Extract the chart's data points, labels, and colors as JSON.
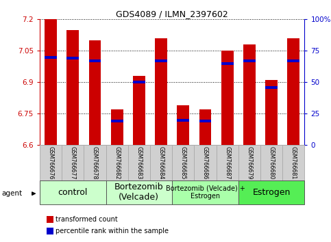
{
  "title": "GDS4089 / ILMN_2397602",
  "samples": [
    "GSM766676",
    "GSM766677",
    "GSM766678",
    "GSM766682",
    "GSM766683",
    "GSM766684",
    "GSM766685",
    "GSM766686",
    "GSM766687",
    "GSM766679",
    "GSM766680",
    "GSM766681"
  ],
  "transformed_counts": [
    7.2,
    7.15,
    7.1,
    6.77,
    6.93,
    7.11,
    6.79,
    6.77,
    7.05,
    7.08,
    6.91,
    7.11
  ],
  "percentile_ranks": [
    70,
    69,
    67,
    19,
    50,
    67,
    20,
    19,
    65,
    67,
    46,
    67
  ],
  "ylim": [
    6.6,
    7.2
  ],
  "yticks": [
    6.6,
    6.75,
    6.9,
    7.05,
    7.2
  ],
  "ytick_labels": [
    "6.6",
    "6.75",
    "6.9",
    "7.05",
    "7.2"
  ],
  "right_yticks": [
    0,
    25,
    50,
    75,
    100
  ],
  "right_ytick_labels": [
    "0",
    "25",
    "50",
    "75",
    "100%"
  ],
  "bar_color": "#cc0000",
  "percentile_color": "#0000cc",
  "bar_width": 0.55,
  "groups": [
    {
      "label": "control",
      "start": 0,
      "end": 3,
      "color": "#ccffcc",
      "fontsize": 9
    },
    {
      "label": "Bortezomib\n(Velcade)",
      "start": 3,
      "end": 6,
      "color": "#ccffcc",
      "fontsize": 9
    },
    {
      "label": "Bortezomib (Velcade) +\nEstrogen",
      "start": 6,
      "end": 9,
      "color": "#aaffaa",
      "fontsize": 7
    },
    {
      "label": "Estrogen",
      "start": 9,
      "end": 12,
      "color": "#55ee55",
      "fontsize": 9
    }
  ],
  "agent_label": "agent",
  "legend_items": [
    {
      "color": "#cc0000",
      "label": "transformed count"
    },
    {
      "color": "#0000cc",
      "label": "percentile rank within the sample"
    }
  ],
  "background_color": "#ffffff",
  "plot_bg_color": "#ffffff",
  "grid_color": "#000000",
  "left_axis_color": "#cc0000",
  "right_axis_color": "#0000cc",
  "label_bg_color": "#d0d0d0",
  "label_edge_color": "#aaaaaa"
}
